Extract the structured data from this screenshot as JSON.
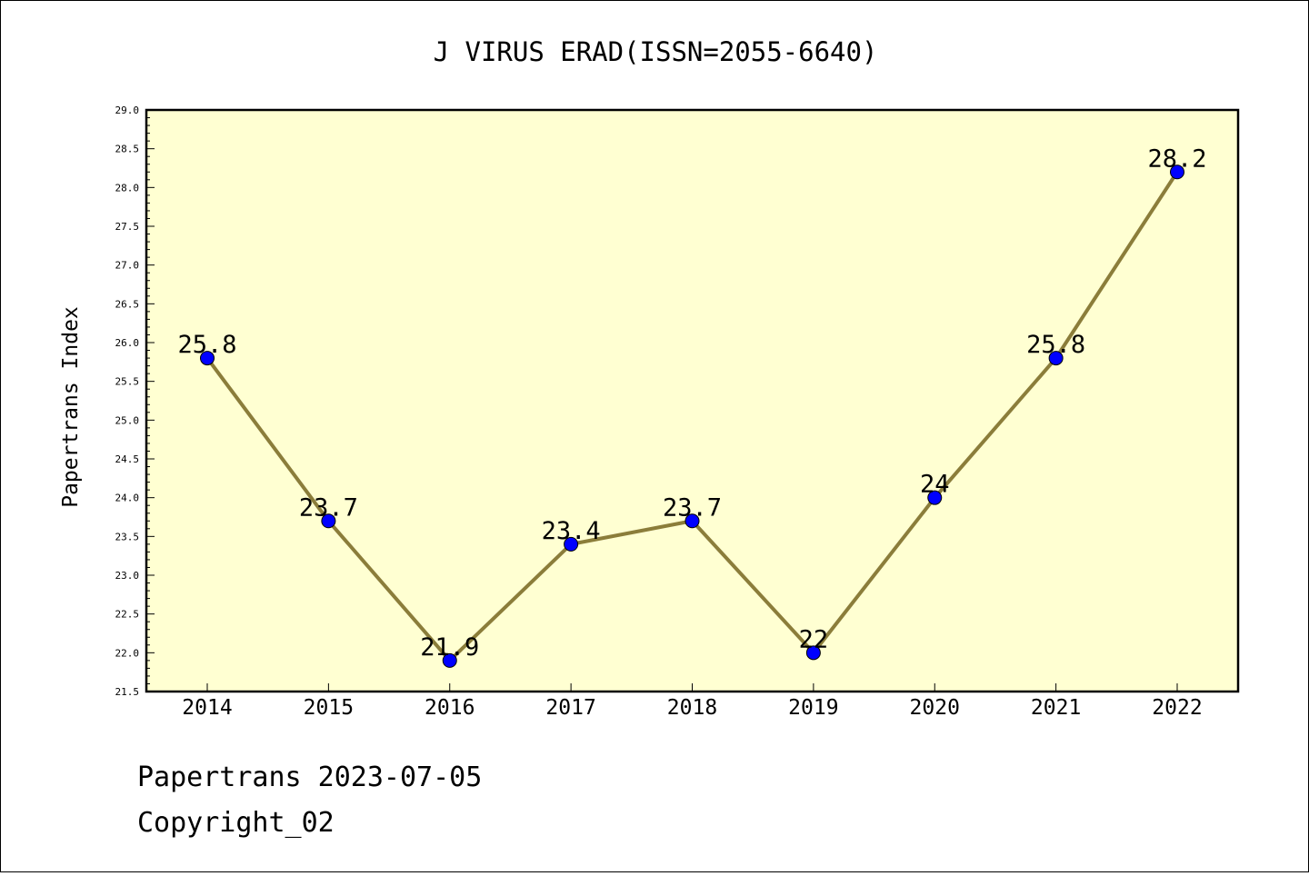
{
  "chart_data": {
    "type": "line",
    "title": "J VIRUS ERAD(ISSN=2055-6640)",
    "xlabel": "",
    "ylabel": "Papertrans Index",
    "categories": [
      "2014",
      "2015",
      "2016",
      "2017",
      "2018",
      "2019",
      "2020",
      "2021",
      "2022"
    ],
    "series": [
      {
        "values": [
          25.8,
          23.7,
          21.9,
          23.4,
          23.7,
          22.0,
          24.0,
          25.8,
          28.2
        ],
        "labels": [
          "25.8",
          "23.7",
          "21.9",
          "23.4",
          "23.7",
          "22",
          "24",
          "25.8",
          "28.2"
        ],
        "line_color": "#8b7d3a",
        "marker_color": "#0000ff"
      }
    ],
    "ylim": [
      21.5,
      29.0
    ],
    "ytick_labels": [
      "21.5",
      "22.0",
      "22.5",
      "23.0",
      "23.5",
      "24.0",
      "24.5",
      "25.0",
      "25.5",
      "26.0",
      "26.5",
      "27.0",
      "27.5",
      "28.0",
      "28.5",
      "29.0"
    ],
    "plot_background": "#ffffd2",
    "grid": false,
    "legend": "none"
  },
  "footer": {
    "line1": "Papertrans 2023-07-05",
    "line2": "Copyright_02"
  }
}
